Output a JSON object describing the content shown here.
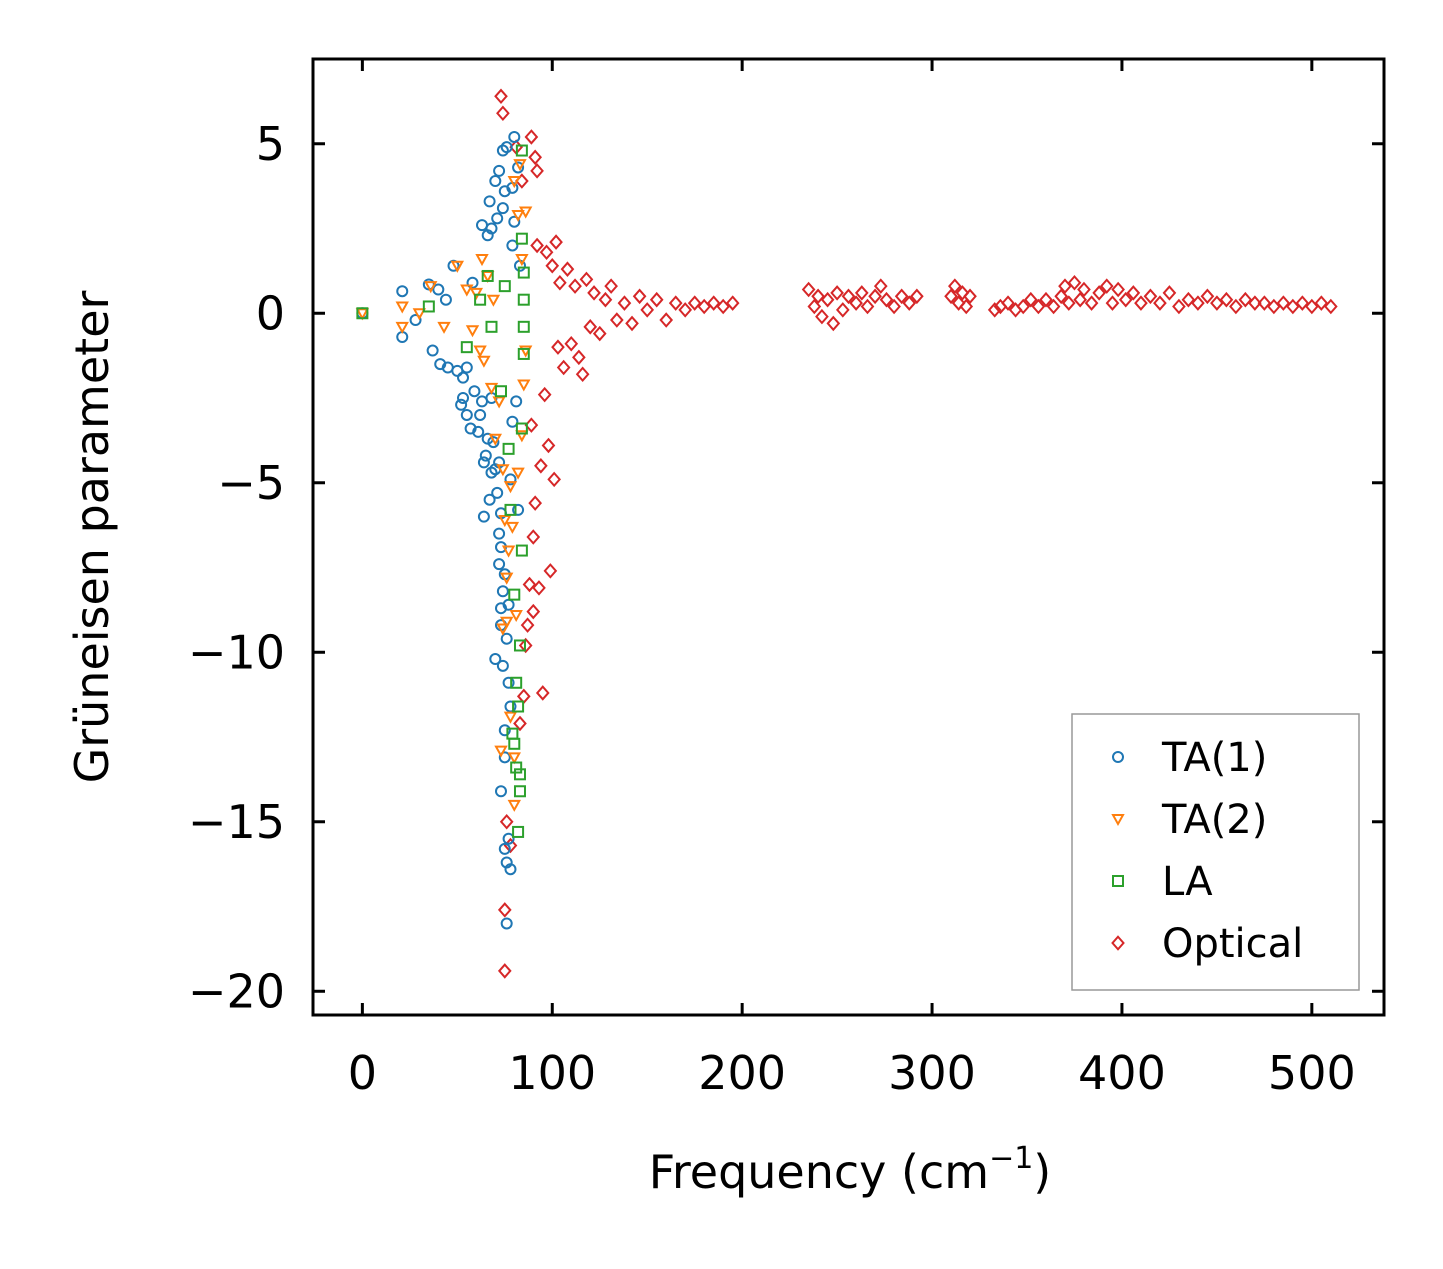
{
  "chart_data": {
    "type": "scatter",
    "title": "",
    "xlabel": "Frequency (cm",
    "xlabel_sup": "−1",
    "xlabel_tail": ")",
    "ylabel": "Grüneisen parameter",
    "xlim": [
      -26,
      538
    ],
    "ylim": [
      -20.7,
      7.5
    ],
    "xticks": [
      0,
      100,
      200,
      300,
      400,
      500
    ],
    "xtick_labels": [
      "0",
      "100",
      "200",
      "300",
      "400",
      "500"
    ],
    "yticks": [
      5,
      0,
      -5,
      -10,
      -15,
      -20
    ],
    "ytick_labels": [
      "5",
      "0",
      "−5",
      "−10",
      "−15",
      "−20"
    ],
    "grid": false,
    "legend_position": "bottom-right",
    "series": [
      {
        "name": "TA(1)",
        "marker": "circle",
        "color": "#1f77b4",
        "points": [
          [
            0,
            0
          ],
          [
            21,
            0.65
          ],
          [
            21,
            -0.7
          ],
          [
            28,
            -0.2
          ],
          [
            35,
            0.85
          ],
          [
            37,
            -1.1
          ],
          [
            40,
            0.7
          ],
          [
            41,
            -1.5
          ],
          [
            44,
            0.4
          ],
          [
            45,
            -1.6
          ],
          [
            48,
            1.4
          ],
          [
            50,
            -1.7
          ],
          [
            52,
            -2.7
          ],
          [
            53,
            -1.9
          ],
          [
            53,
            -2.5
          ],
          [
            55,
            -3.0
          ],
          [
            55,
            -1.6
          ],
          [
            57,
            -3.4
          ],
          [
            58,
            0.9
          ],
          [
            59,
            -2.3
          ],
          [
            61,
            -3.5
          ],
          [
            62,
            -3.0
          ],
          [
            63,
            2.6
          ],
          [
            63,
            -2.6
          ],
          [
            64,
            -4.4
          ],
          [
            64,
            -6.0
          ],
          [
            65,
            -4.2
          ],
          [
            66,
            2.3
          ],
          [
            66,
            -3.7
          ],
          [
            67,
            3.3
          ],
          [
            67,
            -5.5
          ],
          [
            68,
            2.5
          ],
          [
            68,
            -2.5
          ],
          [
            68,
            -4.7
          ],
          [
            69,
            -3.8
          ],
          [
            70,
            -10.2
          ],
          [
            70,
            3.9
          ],
          [
            70,
            -4.6
          ],
          [
            71,
            2.8
          ],
          [
            71,
            -5.3
          ],
          [
            72,
            -6.5
          ],
          [
            72,
            -7.4
          ],
          [
            72,
            4.2
          ],
          [
            72,
            -4.4
          ],
          [
            73,
            -8.7
          ],
          [
            73,
            -9.2
          ],
          [
            73,
            -14.1
          ],
          [
            73,
            -5.9
          ],
          [
            73,
            -6.9
          ],
          [
            74,
            4.8
          ],
          [
            74,
            -10.4
          ],
          [
            74,
            -8.2
          ],
          [
            74,
            3.1
          ],
          [
            75,
            -12.3
          ],
          [
            75,
            -13.1
          ],
          [
            75,
            -15.8
          ],
          [
            75,
            -7.7
          ],
          [
            75,
            3.6
          ],
          [
            76,
            -16.2
          ],
          [
            76,
            -18.0
          ],
          [
            76,
            -9.6
          ],
          [
            76,
            4.9
          ],
          [
            77,
            -10.9
          ],
          [
            77,
            -15.5
          ],
          [
            77,
            -8.6
          ],
          [
            78,
            -16.4
          ],
          [
            78,
            -11.6
          ],
          [
            78,
            -4.9
          ],
          [
            79,
            2.0
          ],
          [
            79,
            3.7
          ],
          [
            79,
            -3.2
          ],
          [
            80,
            5.2
          ],
          [
            80,
            2.7
          ],
          [
            81,
            -2.6
          ],
          [
            82,
            4.3
          ],
          [
            82,
            -5.8
          ],
          [
            83,
            1.4
          ]
        ]
      },
      {
        "name": "TA(2)",
        "marker": "triangle-down",
        "color": "#ff7f0e",
        "points": [
          [
            0,
            0
          ],
          [
            21,
            0.2
          ],
          [
            21,
            -0.4
          ],
          [
            30,
            0.0
          ],
          [
            36,
            0.8
          ],
          [
            43,
            -0.4
          ],
          [
            50,
            1.4
          ],
          [
            55,
            0.7
          ],
          [
            58,
            -0.5
          ],
          [
            60,
            0.6
          ],
          [
            62,
            -1.1
          ],
          [
            63,
            1.6
          ],
          [
            64,
            -1.4
          ],
          [
            66,
            1.1
          ],
          [
            68,
            -2.2
          ],
          [
            69,
            0.4
          ],
          [
            70,
            -3.7
          ],
          [
            72,
            -2.6
          ],
          [
            73,
            -12.9
          ],
          [
            74,
            -4.6
          ],
          [
            74,
            -9.3
          ],
          [
            75,
            -6.1
          ],
          [
            76,
            -9.1
          ],
          [
            76,
            -7.8
          ],
          [
            77,
            -7.0
          ],
          [
            78,
            -11.9
          ],
          [
            78,
            -5.1
          ],
          [
            79,
            -6.3
          ],
          [
            80,
            -14.5
          ],
          [
            80,
            -13.1
          ],
          [
            80,
            3.9
          ],
          [
            81,
            -8.9
          ],
          [
            82,
            -4.7
          ],
          [
            82,
            2.9
          ],
          [
            83,
            4.4
          ],
          [
            84,
            -3.6
          ],
          [
            84,
            1.6
          ],
          [
            85,
            -2.1
          ],
          [
            86,
            3.0
          ],
          [
            86,
            -1.1
          ]
        ]
      },
      {
        "name": "LA",
        "marker": "square",
        "color": "#2ca02c",
        "points": [
          [
            0,
            0
          ],
          [
            35,
            0.2
          ],
          [
            55,
            -1.0
          ],
          [
            62,
            0.4
          ],
          [
            66,
            1.1
          ],
          [
            68,
            -0.4
          ],
          [
            73,
            -2.3
          ],
          [
            75,
            0.8
          ],
          [
            77,
            -4.0
          ],
          [
            78,
            -5.8
          ],
          [
            79,
            -12.4
          ],
          [
            80,
            -8.3
          ],
          [
            80,
            -12.7
          ],
          [
            81,
            -13.4
          ],
          [
            81,
            -10.9
          ],
          [
            82,
            -15.3
          ],
          [
            82,
            -11.6
          ],
          [
            83,
            -14.1
          ],
          [
            83,
            -13.6
          ],
          [
            83,
            -9.8
          ],
          [
            84,
            -7.0
          ],
          [
            84,
            -3.4
          ],
          [
            84,
            2.2
          ],
          [
            84,
            4.8
          ],
          [
            85,
            -1.2
          ],
          [
            85,
            1.2
          ],
          [
            85,
            0.4
          ],
          [
            85,
            -0.4
          ]
        ]
      },
      {
        "name": "Optical",
        "marker": "diamond",
        "color": "#d62728",
        "points": [
          [
            73,
            6.4
          ],
          [
            74,
            5.9
          ],
          [
            75,
            -17.6
          ],
          [
            75,
            -19.4
          ],
          [
            76,
            -15.0
          ],
          [
            78,
            -15.7
          ],
          [
            81,
            4.9
          ],
          [
            83,
            -12.1
          ],
          [
            84,
            3.9
          ],
          [
            85,
            -11.3
          ],
          [
            86,
            -9.8
          ],
          [
            87,
            -9.2
          ],
          [
            88,
            -8.0
          ],
          [
            89,
            5.2
          ],
          [
            89,
            -3.3
          ],
          [
            90,
            -6.6
          ],
          [
            90,
            -8.8
          ],
          [
            91,
            4.6
          ],
          [
            91,
            -5.6
          ],
          [
            92,
            2.0
          ],
          [
            92,
            4.2
          ],
          [
            93,
            -8.1
          ],
          [
            94,
            -4.5
          ],
          [
            95,
            -11.2
          ],
          [
            96,
            -2.4
          ],
          [
            97,
            1.8
          ],
          [
            98,
            -3.9
          ],
          [
            99,
            -7.6
          ],
          [
            100,
            1.4
          ],
          [
            101,
            -4.9
          ],
          [
            102,
            2.1
          ],
          [
            103,
            -1.0
          ],
          [
            104,
            0.9
          ],
          [
            106,
            -1.6
          ],
          [
            108,
            1.3
          ],
          [
            110,
            -0.9
          ],
          [
            112,
            0.8
          ],
          [
            114,
            -1.3
          ],
          [
            116,
            -1.8
          ],
          [
            118,
            1.0
          ],
          [
            120,
            -0.4
          ],
          [
            122,
            0.6
          ],
          [
            125,
            -0.6
          ],
          [
            128,
            0.4
          ],
          [
            131,
            0.8
          ],
          [
            134,
            -0.2
          ],
          [
            138,
            0.3
          ],
          [
            142,
            -0.3
          ],
          [
            146,
            0.5
          ],
          [
            150,
            0.1
          ],
          [
            155,
            0.4
          ],
          [
            160,
            -0.2
          ],
          [
            165,
            0.3
          ],
          [
            170,
            0.1
          ],
          [
            175,
            0.3
          ],
          [
            180,
            0.2
          ],
          [
            185,
            0.3
          ],
          [
            190,
            0.2
          ],
          [
            195,
            0.3
          ],
          [
            235,
            0.7
          ],
          [
            238,
            0.2
          ],
          [
            240,
            0.5
          ],
          [
            242,
            -0.1
          ],
          [
            245,
            0.4
          ],
          [
            248,
            -0.3
          ],
          [
            250,
            0.6
          ],
          [
            253,
            0.1
          ],
          [
            256,
            0.5
          ],
          [
            260,
            0.3
          ],
          [
            263,
            0.6
          ],
          [
            266,
            0.2
          ],
          [
            270,
            0.5
          ],
          [
            273,
            0.8
          ],
          [
            276,
            0.4
          ],
          [
            280,
            0.2
          ],
          [
            284,
            0.5
          ],
          [
            288,
            0.3
          ],
          [
            292,
            0.5
          ],
          [
            310,
            0.5
          ],
          [
            312,
            0.8
          ],
          [
            314,
            0.3
          ],
          [
            316,
            0.6
          ],
          [
            318,
            0.2
          ],
          [
            320,
            0.5
          ],
          [
            333,
            0.1
          ],
          [
            336,
            0.2
          ],
          [
            340,
            0.3
          ],
          [
            344,
            0.1
          ],
          [
            348,
            0.2
          ],
          [
            352,
            0.4
          ],
          [
            356,
            0.2
          ],
          [
            360,
            0.4
          ],
          [
            364,
            0.2
          ],
          [
            368,
            0.5
          ],
          [
            370,
            0.8
          ],
          [
            372,
            0.3
          ],
          [
            375,
            0.9
          ],
          [
            378,
            0.4
          ],
          [
            380,
            0.7
          ],
          [
            384,
            0.3
          ],
          [
            388,
            0.6
          ],
          [
            392,
            0.8
          ],
          [
            395,
            0.3
          ],
          [
            398,
            0.7
          ],
          [
            402,
            0.4
          ],
          [
            406,
            0.6
          ],
          [
            410,
            0.3
          ],
          [
            415,
            0.5
          ],
          [
            420,
            0.3
          ],
          [
            425,
            0.6
          ],
          [
            430,
            0.2
          ],
          [
            435,
            0.4
          ],
          [
            440,
            0.3
          ],
          [
            445,
            0.5
          ],
          [
            450,
            0.3
          ],
          [
            455,
            0.4
          ],
          [
            460,
            0.2
          ],
          [
            465,
            0.4
          ],
          [
            470,
            0.3
          ],
          [
            475,
            0.3
          ],
          [
            480,
            0.2
          ],
          [
            485,
            0.3
          ],
          [
            490,
            0.2
          ],
          [
            495,
            0.3
          ],
          [
            500,
            0.2
          ],
          [
            505,
            0.3
          ],
          [
            510,
            0.2
          ]
        ]
      }
    ]
  }
}
